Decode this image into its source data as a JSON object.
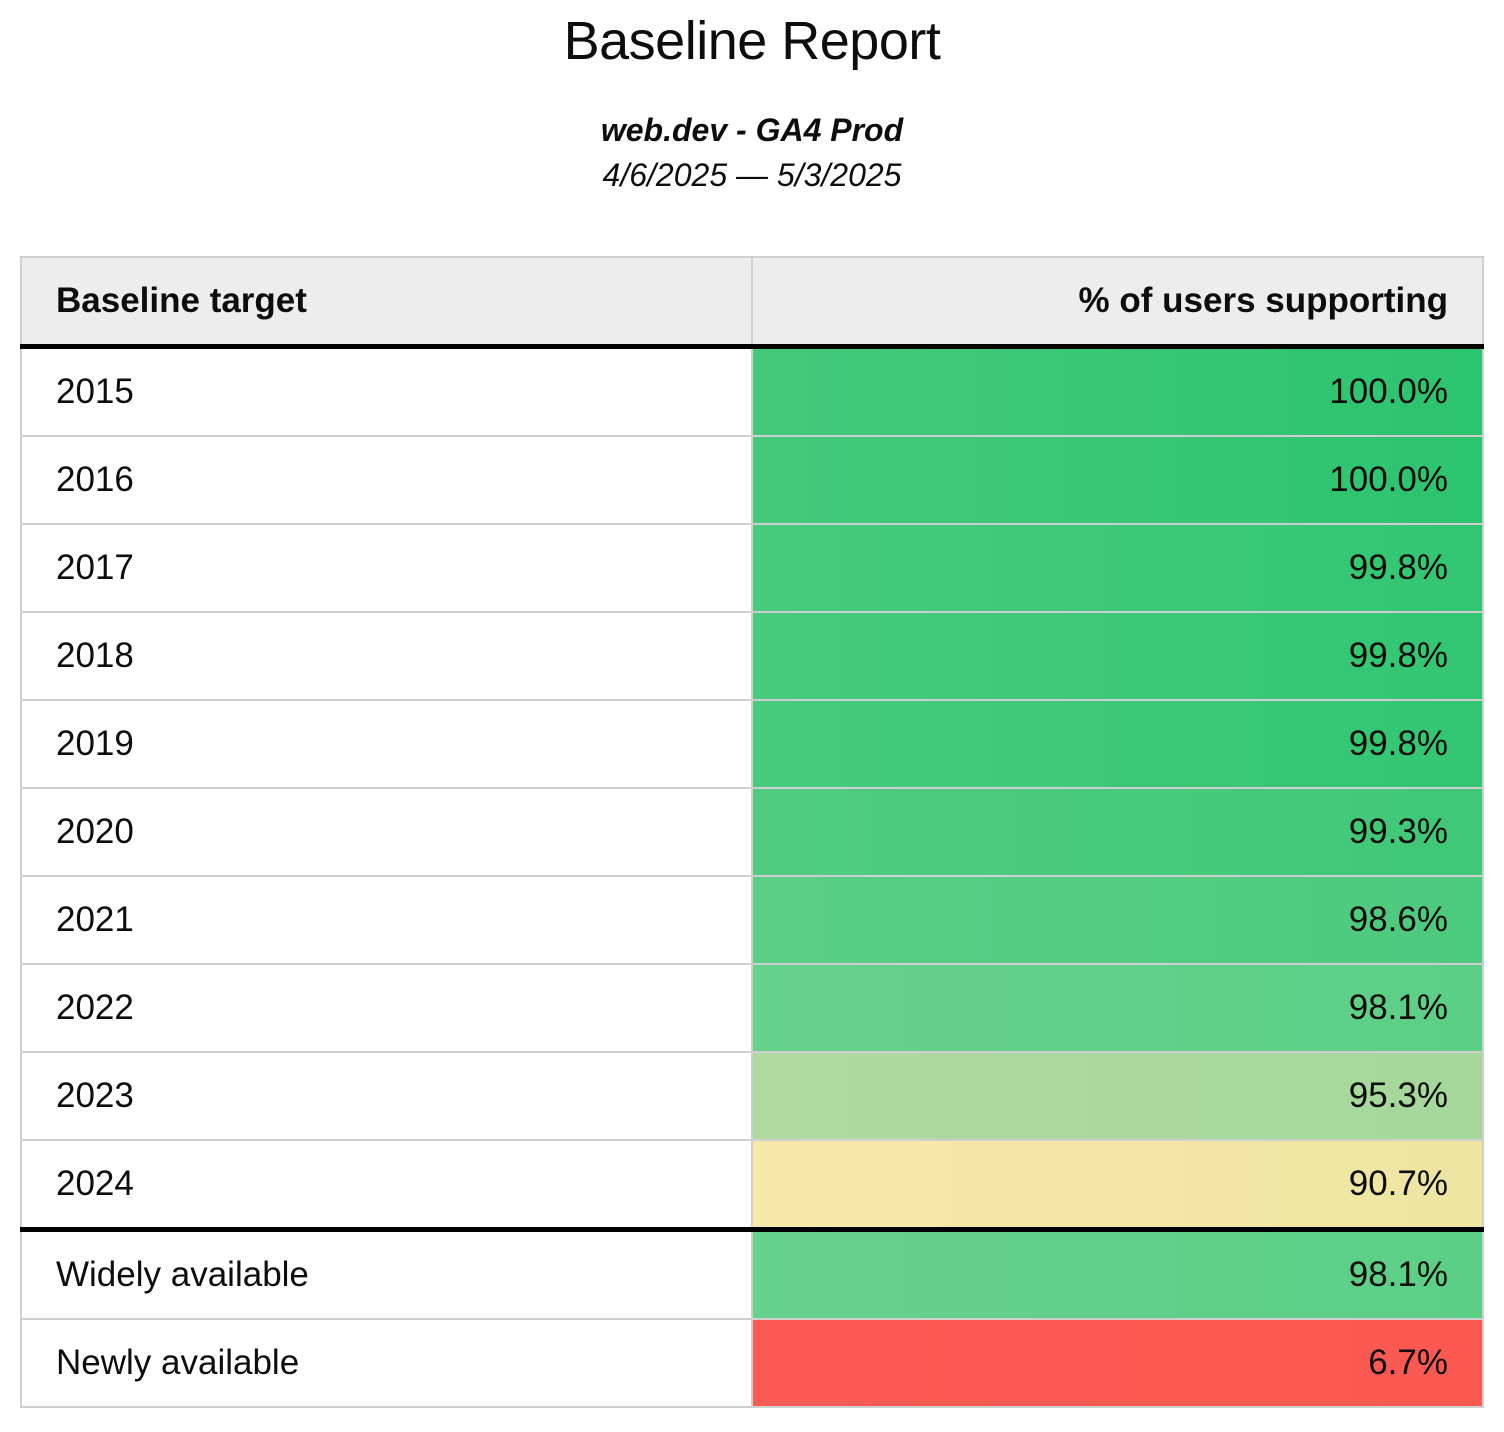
{
  "header": {
    "title": "Baseline Report",
    "subtitle": "web.dev - GA4 Prod",
    "date_range": "4/6/2025 — 5/3/2025"
  },
  "chart_data": {
    "type": "table",
    "title": "Baseline Report",
    "subtitle": "web.dev - GA4 Prod",
    "date_range": "4/6/2025 — 5/3/2025",
    "columns": [
      "Baseline target",
      "% of users supporting"
    ],
    "rows": [
      {
        "target": "2015",
        "value": "100.0%",
        "pct": 100.0,
        "color_left": "#45c97b",
        "color_right": "#2cc46e"
      },
      {
        "target": "2016",
        "value": "100.0%",
        "pct": 100.0,
        "color_left": "#45c97b",
        "color_right": "#2cc46e"
      },
      {
        "target": "2017",
        "value": "99.8%",
        "pct": 99.8,
        "color_left": "#48cb7d",
        "color_right": "#32c672"
      },
      {
        "target": "2018",
        "value": "99.8%",
        "pct": 99.8,
        "color_left": "#48cb7d",
        "color_right": "#32c672"
      },
      {
        "target": "2019",
        "value": "99.8%",
        "pct": 99.8,
        "color_left": "#48cb7d",
        "color_right": "#32c672"
      },
      {
        "target": "2020",
        "value": "99.3%",
        "pct": 99.3,
        "color_left": "#50cc80",
        "color_right": "#3fc877"
      },
      {
        "target": "2021",
        "value": "98.6%",
        "pct": 98.6,
        "color_left": "#5ace85",
        "color_right": "#4cca7e"
      },
      {
        "target": "2022",
        "value": "98.1%",
        "pct": 98.1,
        "color_left": "#67d18e",
        "color_right": "#5ccf86"
      },
      {
        "target": "2023",
        "value": "95.3%",
        "pct": 95.3,
        "color_left": "#b0daa2",
        "color_right": "#a5d79b"
      },
      {
        "target": "2024",
        "value": "90.7%",
        "pct": 90.7,
        "color_left": "#f7e9ab",
        "color_right": "#eee5a2"
      },
      {
        "target": "Widely available",
        "value": "98.1%",
        "pct": 98.1,
        "color_left": "#67d18e",
        "color_right": "#5ccf86"
      },
      {
        "target": "Newly available",
        "value": "6.7%",
        "pct": 6.7,
        "color_left": "#fb5b54",
        "color_right": "#fa5951"
      }
    ]
  },
  "colors": {
    "header_bg": "#ededed",
    "grid_border": "#cfcfcf",
    "section_border": "#000000",
    "text": "#0d0d0d"
  }
}
